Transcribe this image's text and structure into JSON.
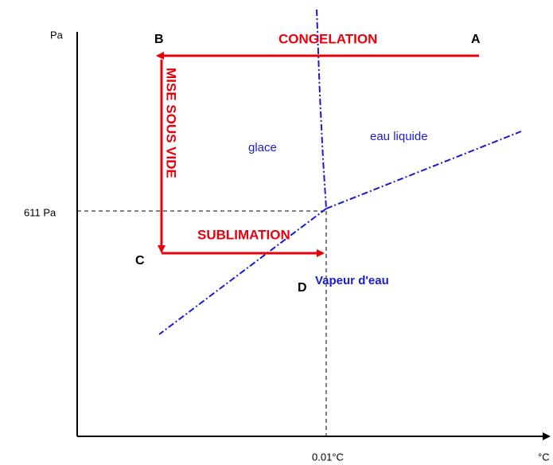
{
  "axes": {
    "y_label": "Pa",
    "x_label": "°C",
    "y_mark": "611 Pa",
    "x_mark": "0.01°C"
  },
  "points": {
    "a": "A",
    "b": "B",
    "c": "C",
    "d": "D"
  },
  "steps": {
    "congelation": "CONGELATION",
    "vide": "MISE SOUS VIDE",
    "sublimation": "SUBLIMATION"
  },
  "regions": {
    "glace": "glace",
    "liquide": "eau liquide",
    "vapeur": "Vapeur d'eau"
  }
}
